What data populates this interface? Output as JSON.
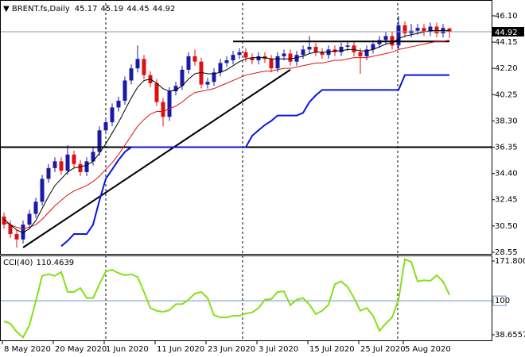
{
  "chart_data": [
    {
      "type": "candlestick",
      "title": "BRENT.fs,Daily",
      "categories": [
        "8 May 2020",
        null,
        null,
        null,
        null,
        null,
        null,
        null,
        "20 May 2020",
        null,
        null,
        null,
        null,
        null,
        null,
        null,
        "1 Jun 2020",
        null,
        null,
        null,
        null,
        null,
        null,
        null,
        "11 Jun 2020",
        null,
        null,
        null,
        null,
        null,
        null,
        null,
        "23 Jun 2020",
        null,
        null,
        null,
        null,
        null,
        null,
        null,
        "3 Jul 2020",
        null,
        null,
        null,
        null,
        null,
        null,
        null,
        "15 Jul 2020",
        null,
        null,
        null,
        null,
        null,
        null,
        null,
        "25 Jul 2020",
        null,
        null,
        null,
        null,
        null,
        null,
        "5 Aug 2020",
        null,
        null,
        null,
        null,
        null,
        null,
        null
      ],
      "open": [
        31.2,
        30.6,
        29.9,
        29.5,
        30.6,
        31.4,
        32.3,
        34.0,
        34.8,
        35.3,
        34.6,
        35.8,
        35.1,
        34.5,
        35.3,
        36.0,
        37.6,
        38.2,
        39.3,
        39.8,
        41.3,
        42.2,
        42.9,
        41.7,
        41.1,
        39.7,
        38.6,
        40.5,
        40.9,
        42.1,
        43.1,
        42.7,
        41.0,
        41.2,
        41.9,
        42.6,
        42.8,
        43.2,
        43.4,
        43.0,
        42.8,
        43.1,
        42.9,
        42.2,
        43.1,
        43.3,
        42.7,
        43.2,
        43.6,
        43.8,
        43.4,
        43.2,
        43.6,
        43.4,
        43.8,
        43.9,
        43.4,
        43.1,
        43.6,
        44.0,
        44.3,
        44.6,
        43.9,
        45.4,
        44.8,
        45.0,
        45.2,
        44.9,
        45.3,
        44.8,
        45.17
      ],
      "high": [
        31.5,
        30.9,
        30.2,
        30.9,
        31.7,
        32.6,
        34.3,
        35.1,
        35.6,
        35.6,
        36.5,
        36.1,
        35.4,
        35.6,
        36.3,
        37.9,
        38.5,
        39.6,
        40.1,
        41.6,
        42.5,
        43.9,
        43.2,
        42.0,
        41.4,
        40.0,
        40.8,
        41.2,
        42.4,
        43.4,
        43.6,
        43.0,
        41.5,
        42.2,
        42.9,
        43.1,
        43.5,
        43.7,
        43.7,
        43.3,
        43.4,
        43.4,
        43.2,
        43.4,
        43.6,
        43.6,
        43.5,
        43.9,
        44.6,
        44.1,
        43.7,
        43.9,
        43.9,
        44.1,
        44.2,
        44.2,
        43.7,
        43.9,
        44.3,
        44.6,
        44.9,
        44.9,
        46.1,
        45.7,
        45.5,
        45.5,
        45.5,
        45.6,
        45.6,
        45.5,
        45.19
      ],
      "low": [
        30.3,
        29.6,
        28.9,
        29.2,
        30.3,
        31.1,
        32.0,
        33.7,
        34.5,
        34.3,
        34.3,
        34.8,
        34.2,
        34.2,
        35.0,
        35.7,
        37.3,
        37.9,
        39.0,
        39.5,
        41.0,
        41.9,
        41.4,
        40.8,
        39.4,
        37.9,
        38.3,
        40.2,
        40.6,
        41.8,
        42.4,
        40.7,
        40.7,
        40.9,
        41.6,
        42.3,
        42.5,
        42.9,
        42.7,
        42.5,
        42.5,
        42.6,
        41.9,
        41.9,
        42.8,
        42.4,
        42.4,
        42.9,
        43.3,
        43.1,
        42.9,
        42.9,
        43.1,
        43.1,
        43.5,
        43.1,
        41.8,
        42.8,
        43.3,
        43.7,
        44.0,
        43.6,
        43.6,
        44.5,
        44.5,
        44.7,
        44.6,
        44.6,
        44.5,
        44.5,
        44.45
      ],
      "close": [
        30.6,
        29.9,
        29.5,
        30.6,
        31.4,
        32.3,
        34.0,
        34.8,
        35.3,
        34.6,
        35.8,
        35.1,
        34.5,
        35.3,
        36.0,
        37.6,
        38.2,
        39.3,
        39.8,
        41.3,
        42.2,
        42.9,
        41.7,
        41.1,
        39.7,
        38.6,
        40.5,
        40.9,
        42.1,
        43.1,
        42.7,
        41.0,
        41.2,
        41.9,
        42.6,
        42.8,
        43.2,
        43.4,
        43.0,
        42.8,
        43.1,
        42.9,
        42.2,
        43.1,
        43.3,
        42.7,
        43.2,
        43.6,
        43.8,
        43.4,
        43.2,
        43.6,
        43.4,
        43.8,
        43.9,
        43.4,
        43.1,
        43.6,
        44.0,
        44.3,
        44.6,
        43.9,
        45.4,
        44.8,
        45.0,
        45.2,
        44.9,
        45.3,
        44.8,
        45.2,
        44.92
      ],
      "up_color": "#1a1aa6",
      "down_color": "#e01010",
      "series": [
        {
          "color": "#e01010",
          "values": [
            30.8,
            30.6,
            30.4,
            30.3,
            30.4,
            30.6,
            31.0,
            31.5,
            32.0,
            32.4,
            32.8,
            33.1,
            33.3,
            33.5,
            33.8,
            34.2,
            34.7,
            35.2,
            35.8,
            36.5,
            37.2,
            37.9,
            38.4,
            38.8,
            39.0,
            39.0,
            39.2,
            39.4,
            39.7,
            40.1,
            40.4,
            40.5,
            40.6,
            40.7,
            40.9,
            41.1,
            41.3,
            41.5,
            41.7,
            41.8,
            41.9,
            42.0,
            42.0,
            42.1,
            42.2,
            42.2,
            42.3,
            42.4,
            42.5,
            42.6,
            42.6,
            42.7,
            42.8,
            42.8,
            42.9,
            43.0,
            43.0,
            43.0,
            43.1,
            43.2,
            43.3,
            43.4,
            43.6,
            43.7,
            43.8,
            43.9,
            44.0,
            44.1,
            44.2,
            44.2,
            44.3
          ]
        },
        {
          "color": "#000000",
          "values": [
            31.0,
            30.6,
            30.2,
            30.0,
            30.3,
            30.9,
            31.8,
            32.7,
            33.5,
            34.0,
            34.5,
            34.8,
            34.9,
            35.0,
            35.3,
            35.9,
            36.6,
            37.4,
            38.2,
            39.1,
            40.0,
            40.8,
            41.3,
            41.4,
            41.1,
            40.7,
            40.5,
            40.6,
            40.9,
            41.4,
            41.8,
            41.9,
            41.8,
            41.8,
            41.9,
            42.1,
            42.4,
            42.7,
            42.9,
            43.0,
            43.0,
            43.0,
            42.9,
            42.9,
            42.9,
            42.9,
            43.0,
            43.1,
            43.3,
            43.4,
            43.4,
            43.4,
            43.5,
            43.5,
            43.6,
            43.6,
            43.5,
            43.5,
            43.6,
            43.8,
            44.0,
            44.1,
            44.4,
            44.6,
            44.7,
            44.8,
            44.9,
            45.0,
            45.0,
            45.0,
            45.0
          ]
        },
        {
          "color": "#0a14e6",
          "line_width": 2,
          "values": [
            null,
            null,
            null,
            null,
            null,
            null,
            null,
            null,
            null,
            29.0,
            29.4,
            29.9,
            29.9,
            29.9,
            30.6,
            32.4,
            34.0,
            34.7,
            35.4,
            36.0,
            36.35,
            36.35,
            36.35,
            36.35,
            36.35,
            36.35,
            36.35,
            36.35,
            36.35,
            36.35,
            36.35,
            36.35,
            36.35,
            36.35,
            36.35,
            36.35,
            36.35,
            36.35,
            36.35,
            37.2,
            37.6,
            38.0,
            38.3,
            38.7,
            38.7,
            38.7,
            38.7,
            38.9,
            39.7,
            40.2,
            40.6,
            40.6,
            40.6,
            40.6,
            40.6,
            40.6,
            40.6,
            40.6,
            40.6,
            40.6,
            40.6,
            40.6,
            40.6,
            41.7,
            41.7,
            41.7,
            41.7,
            41.7,
            41.7,
            41.7,
            41.7
          ]
        }
      ],
      "hlines": [
        36.35
      ],
      "trendlines": [
        {
          "x": [
            3,
            45
          ],
          "y": [
            28.9,
            42.1
          ]
        },
        {
          "x": [
            36,
            70
          ],
          "y": [
            44.2,
            44.2
          ]
        }
      ],
      "ylim": [
        28.43,
        47.04
      ],
      "yticks": [
        {
          "value": 46.1,
          "label": "46.10"
        },
        44.15,
        {
          "value": 42.2,
          "label": "42.20"
        },
        40.25,
        {
          "value": 38.3,
          "label": "38.30"
        },
        36.35,
        {
          "value": 34.4,
          "label": "34.40"
        },
        32.45,
        {
          "value": 30.5,
          "label": "30.50"
        },
        28.55
      ]
    },
    {
      "type": "line",
      "title": "CCI(40)",
      "color": "#86e01a",
      "values": [
        63,
        59,
        44,
        34,
        56,
        99,
        145,
        148,
        145,
        152,
        116,
        116,
        123,
        105,
        105,
        130,
        153,
        156,
        150,
        146,
        148,
        143,
        116,
        87,
        82,
        80,
        83,
        94,
        94,
        102,
        113,
        116,
        105,
        74,
        70,
        70,
        73,
        73,
        77,
        79,
        87,
        102,
        103,
        116,
        117,
        92,
        102,
        105,
        93,
        76,
        82,
        93,
        130,
        135,
        125,
        105,
        82,
        87,
        73,
        46,
        59,
        70,
        102,
        175,
        170,
        135,
        137,
        136,
        146,
        135,
        110.4639
      ],
      "ylim": [
        30.07,
        181.82
      ],
      "yticks": [
        171.8007,
        100,
        38.6557
      ],
      "levels": [
        100
      ]
    }
  ]
}
